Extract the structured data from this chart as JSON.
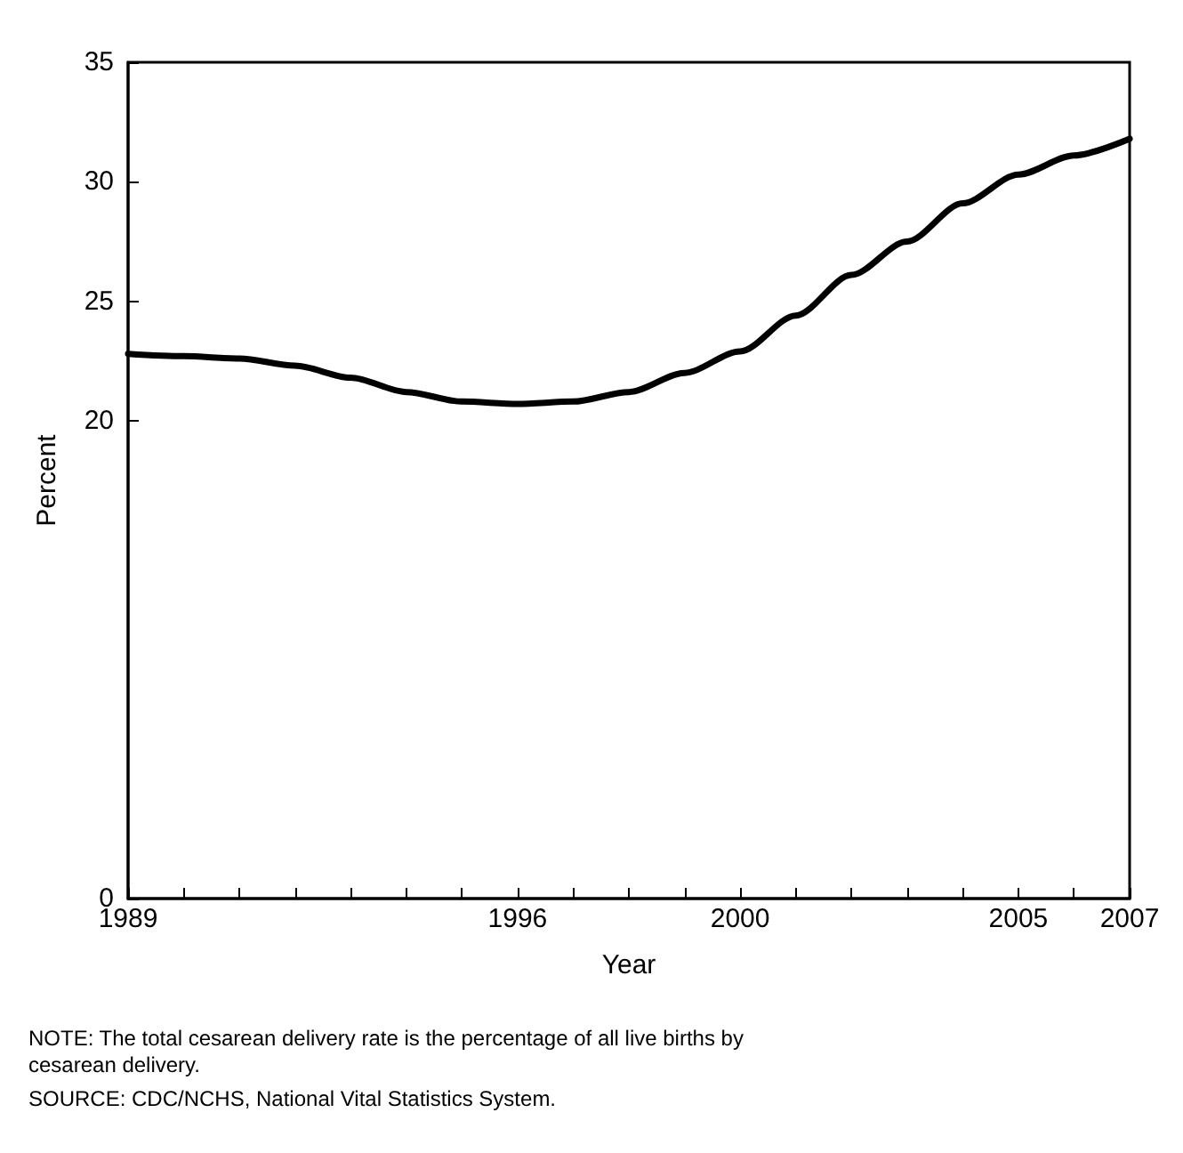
{
  "chart_data": {
    "type": "line",
    "xlabel": "Year",
    "ylabel": "Percent",
    "x": [
      1989,
      1990,
      1991,
      1992,
      1993,
      1994,
      1995,
      1996,
      1997,
      1998,
      1999,
      2000,
      2001,
      2002,
      2003,
      2004,
      2005,
      2006,
      2007
    ],
    "series": [
      {
        "color": "#000000",
        "values": [
          22.8,
          22.7,
          22.6,
          22.3,
          21.8,
          21.2,
          20.8,
          20.7,
          20.8,
          21.2,
          22.0,
          22.9,
          24.4,
          26.1,
          27.5,
          29.1,
          30.3,
          31.1,
          31.8
        ]
      }
    ],
    "xlim": [
      1989,
      2007
    ],
    "xticks": [
      1989,
      {
        "value": 1990,
        "label": null
      },
      {
        "value": 1991,
        "label": null
      },
      {
        "value": 1992,
        "label": null
      },
      {
        "value": 1993,
        "label": null
      },
      {
        "value": 1994,
        "label": null
      },
      {
        "value": 1995,
        "label": null
      },
      1996,
      {
        "value": 1997,
        "label": null
      },
      {
        "value": 1998,
        "label": null
      },
      {
        "value": 1999,
        "label": null
      },
      2000,
      {
        "value": 2001,
        "label": null
      },
      {
        "value": 2002,
        "label": null
      },
      {
        "value": 2003,
        "label": null
      },
      {
        "value": 2004,
        "label": null
      },
      2005,
      {
        "value": 2006,
        "label": null
      },
      2007
    ],
    "ylim": [
      0,
      35
    ],
    "yticks": [
      0,
      20,
      25,
      30,
      35
    ],
    "grid": false,
    "marker": "none",
    "line_style": "solid",
    "annotations": [
      "NOTE: The total cesarean delivery rate is the percentage of all live births by cesarean delivery.",
      "SOURCE: CDC/NCHS, National Vital Statistics System."
    ]
  }
}
